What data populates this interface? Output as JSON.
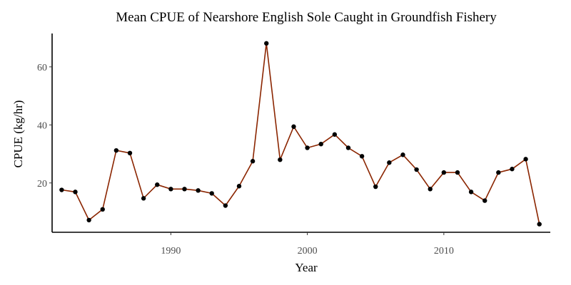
{
  "chart_data": {
    "type": "line",
    "title": "Mean CPUE of Nearshore English Sole Caught in Groundfish Fishery",
    "xlabel": "Year",
    "ylabel": "CPUE (kg/hr)",
    "xlim": [
      1981.3,
      2017.8
    ],
    "ylim": [
      3.0,
      71.5
    ],
    "x_ticks": [
      1990,
      2000,
      2010
    ],
    "y_ticks": [
      20,
      40,
      60
    ],
    "grid": false,
    "legend": "none",
    "series": [
      {
        "color": "#8B2500",
        "marker_color": "#000000",
        "x": [
          1982,
          1983,
          1984,
          1985,
          1986,
          1987,
          1988,
          1989,
          1990,
          1991,
          1992,
          1993,
          1994,
          1995,
          1996,
          1997,
          1998,
          1999,
          2000,
          2001,
          2002,
          2003,
          2004,
          2005,
          2006,
          2007,
          2008,
          2009,
          2010,
          2011,
          2012,
          2013,
          2014,
          2015,
          2016,
          2017
        ],
        "y": [
          17.6,
          16.9,
          7.2,
          10.9,
          31.2,
          30.3,
          14.7,
          19.4,
          17.9,
          17.9,
          17.4,
          16.4,
          12.2,
          18.9,
          27.5,
          68.1,
          28.0,
          39.4,
          32.1,
          33.4,
          36.7,
          32.1,
          29.2,
          18.7,
          27.0,
          29.7,
          24.6,
          17.9,
          23.6,
          23.6,
          16.9,
          13.9,
          23.6,
          24.8,
          28.2,
          5.8
        ]
      }
    ]
  }
}
